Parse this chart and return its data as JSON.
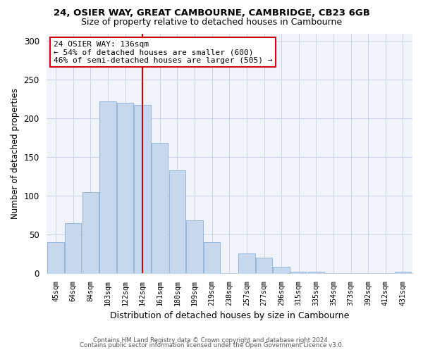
{
  "title": "24, OSIER WAY, GREAT CAMBOURNE, CAMBRIDGE, CB23 6GB",
  "subtitle": "Size of property relative to detached houses in Cambourne",
  "xlabel": "Distribution of detached houses by size in Cambourne",
  "ylabel": "Number of detached properties",
  "bar_labels": [
    "45sqm",
    "64sqm",
    "84sqm",
    "103sqm",
    "122sqm",
    "142sqm",
    "161sqm",
    "180sqm",
    "199sqm",
    "219sqm",
    "238sqm",
    "257sqm",
    "277sqm",
    "296sqm",
    "315sqm",
    "335sqm",
    "354sqm",
    "373sqm",
    "392sqm",
    "412sqm",
    "431sqm"
  ],
  "bar_values": [
    40,
    65,
    105,
    222,
    220,
    218,
    168,
    133,
    68,
    40,
    0,
    25,
    20,
    8,
    2,
    2,
    0,
    0,
    0,
    0,
    2
  ],
  "bar_color": "#c5d8ed",
  "bar_edge_color": "#8aafd4",
  "vline_x": 5,
  "vline_color": "#cc0000",
  "annotation_text": "24 OSIER WAY: 136sqm\n← 54% of detached houses are smaller (600)\n46% of semi-detached houses are larger (505) →",
  "annotation_box_color": "#ffffff",
  "annotation_box_edge": "#cc0000",
  "ylim": [
    0,
    310
  ],
  "yticks": [
    0,
    50,
    100,
    150,
    200,
    250,
    300
  ],
  "footer1": "Contains HM Land Registry data © Crown copyright and database right 2024.",
  "footer2": "Contains public sector information licensed under the Open Government Licence v3.0."
}
